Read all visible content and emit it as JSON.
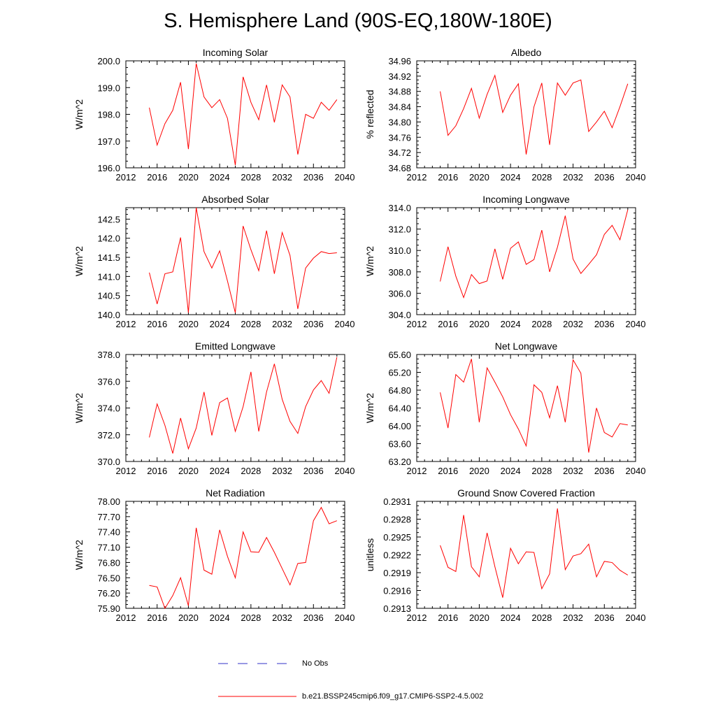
{
  "page_title": "S. Hemisphere Land (90S-EQ,180W-180E)",
  "colors": {
    "model_line": "#ff0000",
    "obs_line": "#3030c8",
    "axis": "#000000"
  },
  "legend": {
    "obs_label": "No Obs",
    "model_label": "b.e21.BSSP245cmip6.f09_g17.CMIP6-SSP2-4.5.002"
  },
  "chart_data": [
    {
      "type": "line",
      "title": "Incoming Solar",
      "ylabel": "W/m^2",
      "xlabel": "",
      "xlim": [
        2012,
        2040
      ],
      "xticks": [
        2012,
        2016,
        2020,
        2024,
        2028,
        2032,
        2036,
        2040
      ],
      "ylim": [
        196.0,
        200.0
      ],
      "yticks": [
        196.0,
        197.0,
        198.0,
        199.0,
        200.0
      ],
      "ydecimals": 1,
      "x": [
        2015,
        2016,
        2017,
        2018,
        2019,
        2020,
        2021,
        2022,
        2023,
        2024,
        2025,
        2026,
        2027,
        2028,
        2029,
        2030,
        2031,
        2032,
        2033,
        2034,
        2035,
        2036,
        2037,
        2038,
        2039
      ],
      "series": [
        {
          "name": "b.e21.BSSP245cmip6.f09_g17.CMIP6-SSP2-4.5.002",
          "values": [
            198.25,
            196.85,
            197.65,
            198.15,
            199.2,
            196.7,
            199.9,
            198.65,
            198.25,
            198.55,
            197.85,
            196.1,
            199.4,
            198.45,
            197.8,
            199.1,
            197.7,
            199.1,
            198.65,
            196.5,
            198.0,
            197.85,
            198.45,
            198.15,
            198.55
          ]
        }
      ]
    },
    {
      "type": "line",
      "title": "Albedo",
      "ylabel": "% reflected",
      "xlabel": "",
      "xlim": [
        2012,
        2040
      ],
      "xticks": [
        2012,
        2016,
        2020,
        2024,
        2028,
        2032,
        2036,
        2040
      ],
      "ylim": [
        34.68,
        34.96
      ],
      "yticks": [
        34.68,
        34.72,
        34.76,
        34.8,
        34.84,
        34.88,
        34.92,
        34.96
      ],
      "ydecimals": 2,
      "x": [
        2015,
        2016,
        2017,
        2018,
        2019,
        2020,
        2021,
        2022,
        2023,
        2024,
        2025,
        2026,
        2027,
        2028,
        2029,
        2030,
        2031,
        2032,
        2033,
        2034,
        2035,
        2036,
        2037,
        2038,
        2039
      ],
      "series": [
        {
          "name": "b.e21.BSSP245cmip6.f09_g17.CMIP6-SSP2-4.5.002",
          "values": [
            34.88,
            34.765,
            34.79,
            34.835,
            34.888,
            34.81,
            34.872,
            34.922,
            34.825,
            34.87,
            34.9,
            34.715,
            34.84,
            34.902,
            34.74,
            34.902,
            34.87,
            34.902,
            34.91,
            34.775,
            34.8,
            34.828,
            34.785,
            34.84,
            34.9
          ]
        }
      ]
    },
    {
      "type": "line",
      "title": "Absorbed Solar",
      "ylabel": "W/m^2",
      "xlabel": "",
      "xlim": [
        2012,
        2040
      ],
      "xticks": [
        2012,
        2016,
        2020,
        2024,
        2028,
        2032,
        2036,
        2040
      ],
      "ylim": [
        140.0,
        142.8
      ],
      "yticks": [
        140.0,
        140.5,
        141.0,
        141.5,
        142.0,
        142.5
      ],
      "ydecimals": 1,
      "x": [
        2015,
        2016,
        2017,
        2018,
        2019,
        2020,
        2021,
        2022,
        2023,
        2024,
        2025,
        2026,
        2027,
        2028,
        2029,
        2030,
        2031,
        2032,
        2033,
        2034,
        2035,
        2036,
        2037,
        2038,
        2039
      ],
      "series": [
        {
          "name": "b.e21.BSSP245cmip6.f09_g17.CMIP6-SSP2-4.5.002",
          "values": [
            141.1,
            140.28,
            141.07,
            141.12,
            142.02,
            140.05,
            142.8,
            141.65,
            141.22,
            141.67,
            140.88,
            140.05,
            142.32,
            141.7,
            141.15,
            142.2,
            141.07,
            142.15,
            141.55,
            140.15,
            141.22,
            141.48,
            141.65,
            141.6,
            141.62
          ]
        }
      ]
    },
    {
      "type": "line",
      "title": "Incoming Longwave",
      "ylabel": "W/m^2",
      "xlabel": "",
      "xlim": [
        2012,
        2040
      ],
      "xticks": [
        2012,
        2016,
        2020,
        2024,
        2028,
        2032,
        2036,
        2040
      ],
      "ylim": [
        304.0,
        314.0
      ],
      "yticks": [
        304.0,
        306.0,
        308.0,
        310.0,
        312.0,
        314.0
      ],
      "ydecimals": 1,
      "x": [
        2015,
        2016,
        2017,
        2018,
        2019,
        2020,
        2021,
        2022,
        2023,
        2024,
        2025,
        2026,
        2027,
        2028,
        2029,
        2030,
        2031,
        2032,
        2033,
        2034,
        2035,
        2036,
        2037,
        2038,
        2039
      ],
      "series": [
        {
          "name": "b.e21.BSSP245cmip6.f09_g17.CMIP6-SSP2-4.5.002",
          "values": [
            307.1,
            310.35,
            307.6,
            305.6,
            307.75,
            306.9,
            307.15,
            310.15,
            307.3,
            310.2,
            310.8,
            308.7,
            309.15,
            311.9,
            308.0,
            310.3,
            313.25,
            309.2,
            307.85,
            308.7,
            309.6,
            311.5,
            312.35,
            311.0,
            313.8
          ]
        }
      ]
    },
    {
      "type": "line",
      "title": "Emitted Longwave",
      "ylabel": "W/m^2",
      "xlabel": "",
      "xlim": [
        2012,
        2040
      ],
      "xticks": [
        2012,
        2016,
        2020,
        2024,
        2028,
        2032,
        2036,
        2040
      ],
      "ylim": [
        370.0,
        378.0
      ],
      "yticks": [
        370.0,
        372.0,
        374.0,
        376.0,
        378.0
      ],
      "ydecimals": 1,
      "x": [
        2015,
        2016,
        2017,
        2018,
        2019,
        2020,
        2021,
        2022,
        2023,
        2024,
        2025,
        2026,
        2027,
        2028,
        2029,
        2030,
        2031,
        2032,
        2033,
        2034,
        2035,
        2036,
        2037,
        2038,
        2039
      ],
      "series": [
        {
          "name": "b.e21.BSSP245cmip6.f09_g17.CMIP6-SSP2-4.5.002",
          "values": [
            371.8,
            374.3,
            372.7,
            370.6,
            373.25,
            370.95,
            372.5,
            375.2,
            371.95,
            374.4,
            374.75,
            372.25,
            374.1,
            376.7,
            372.25,
            375.2,
            377.3,
            374.65,
            373.0,
            372.1,
            374.1,
            375.35,
            376.05,
            375.1,
            377.8
          ]
        }
      ]
    },
    {
      "type": "line",
      "title": "Net Longwave",
      "ylabel": "W/m^2",
      "xlabel": "",
      "xlim": [
        2012,
        2040
      ],
      "xticks": [
        2012,
        2016,
        2020,
        2024,
        2028,
        2032,
        2036,
        2040
      ],
      "ylim": [
        63.2,
        65.6
      ],
      "yticks": [
        63.2,
        63.6,
        64.0,
        64.4,
        64.8,
        65.2,
        65.6
      ],
      "ydecimals": 2,
      "x": [
        2015,
        2016,
        2017,
        2018,
        2019,
        2020,
        2021,
        2022,
        2023,
        2024,
        2025,
        2026,
        2027,
        2028,
        2029,
        2030,
        2031,
        2032,
        2033,
        2034,
        2035,
        2036,
        2037,
        2038,
        2039
      ],
      "series": [
        {
          "name": "b.e21.BSSP245cmip6.f09_g17.CMIP6-SSP2-4.5.002",
          "values": [
            64.75,
            63.95,
            65.15,
            64.98,
            65.5,
            64.08,
            65.3,
            64.98,
            64.65,
            64.25,
            63.93,
            63.55,
            64.92,
            64.75,
            64.18,
            64.9,
            64.08,
            65.48,
            65.18,
            63.4,
            64.4,
            63.85,
            63.75,
            64.05,
            64.02
          ]
        }
      ]
    },
    {
      "type": "line",
      "title": "Net Radiation",
      "ylabel": "W/m^2",
      "xlabel": "",
      "xlim": [
        2012,
        2040
      ],
      "xticks": [
        2012,
        2016,
        2020,
        2024,
        2028,
        2032,
        2036,
        2040
      ],
      "ylim": [
        75.9,
        78.0
      ],
      "yticks": [
        75.9,
        76.2,
        76.5,
        76.8,
        77.1,
        77.4,
        77.7,
        78.0
      ],
      "ydecimals": 2,
      "x": [
        2015,
        2016,
        2017,
        2018,
        2019,
        2020,
        2021,
        2022,
        2023,
        2024,
        2025,
        2026,
        2027,
        2028,
        2029,
        2030,
        2031,
        2032,
        2033,
        2034,
        2035,
        2036,
        2037,
        2038,
        2039
      ],
      "series": [
        {
          "name": "b.e21.BSSP245cmip6.f09_g17.CMIP6-SSP2-4.5.002",
          "values": [
            76.35,
            76.32,
            75.9,
            76.15,
            76.5,
            75.95,
            77.48,
            76.65,
            76.57,
            77.44,
            76.92,
            76.5,
            77.4,
            77.01,
            77.0,
            77.29,
            77.0,
            76.68,
            76.36,
            76.78,
            76.8,
            77.62,
            77.88,
            77.56,
            77.62
          ]
        }
      ]
    },
    {
      "type": "line",
      "title": "Ground Snow Covered Fraction",
      "ylabel": "unitless",
      "xlabel": "",
      "xlim": [
        2012,
        2040
      ],
      "xticks": [
        2012,
        2016,
        2020,
        2024,
        2028,
        2032,
        2036,
        2040
      ],
      "ylim": [
        0.2913,
        0.2931
      ],
      "yticks": [
        0.2913,
        0.2916,
        0.2919,
        0.2922,
        0.2925,
        0.2928,
        0.2931
      ],
      "ydecimals": 4,
      "x": [
        2015,
        2016,
        2017,
        2018,
        2019,
        2020,
        2021,
        2022,
        2023,
        2024,
        2025,
        2026,
        2027,
        2028,
        2029,
        2030,
        2031,
        2032,
        2033,
        2034,
        2035,
        2036,
        2037,
        2038,
        2039
      ],
      "series": [
        {
          "name": "b.e21.BSSP245cmip6.f09_g17.CMIP6-SSP2-4.5.002",
          "values": [
            0.29236,
            0.29199,
            0.29192,
            0.29287,
            0.292,
            0.29183,
            0.29257,
            0.292,
            0.29148,
            0.29231,
            0.29205,
            0.29225,
            0.29224,
            0.29163,
            0.29188,
            0.29298,
            0.29195,
            0.29218,
            0.29222,
            0.29238,
            0.29183,
            0.29209,
            0.29207,
            0.29194,
            0.29186
          ]
        }
      ]
    }
  ]
}
